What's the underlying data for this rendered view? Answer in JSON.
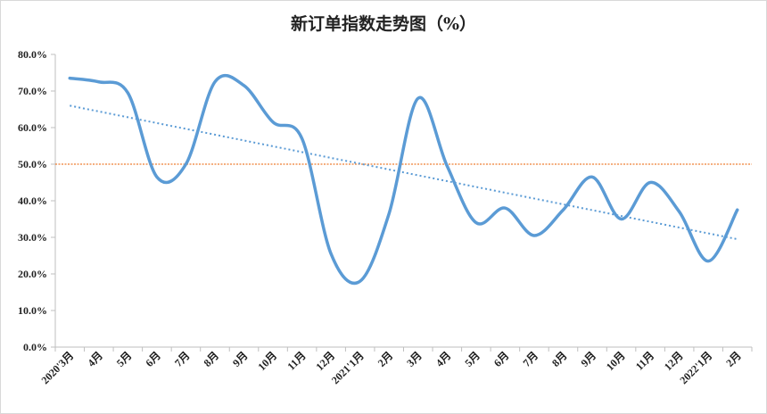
{
  "chart_data": {
    "type": "line",
    "title": "新订单指数走势图（%）",
    "categories": [
      "2020年3月",
      "4月",
      "5月",
      "6月",
      "7月",
      "8月",
      "9月",
      "10月",
      "11月",
      "12月",
      "2021年1月",
      "2月",
      "3月",
      "4月",
      "5月",
      "6月",
      "7月",
      "8月",
      "9月",
      "10月",
      "11月",
      "12月",
      "2022年1月",
      "2月"
    ],
    "tick_labels": [
      "2020'3月",
      "4月",
      "5月",
      "6月",
      "7月",
      "8月",
      "9月",
      "10月",
      "11月",
      "12月",
      "2021'1月",
      "2月",
      "3月",
      "4月",
      "5月",
      "6月",
      "7月",
      "8月",
      "9月",
      "10月",
      "11月",
      "12月",
      "2022'1月",
      "2月"
    ],
    "series": [
      {
        "values": [
          73.5,
          72.5,
          69.5,
          46.5,
          50.0,
          72.5,
          71.5,
          61.5,
          57.0,
          25.5,
          18.0,
          36.5,
          68.0,
          49.5,
          34.0,
          38.0,
          30.5,
          37.5,
          46.5,
          35.0,
          45.0,
          37.0,
          23.5,
          37.5
        ],
        "color": "#5b9bd5"
      }
    ],
    "trendline": {
      "start": 66.0,
      "end": 29.5,
      "color": "#5b9bd5",
      "style": "dotted"
    },
    "reference_line": {
      "value": 50.0,
      "color": "#ed7d31"
    },
    "y_ticks": [
      "0.0%",
      "10.0%",
      "20.0%",
      "30.0%",
      "40.0%",
      "50.0%",
      "60.0%",
      "70.0%",
      "80.0%"
    ],
    "ylim": [
      0,
      80
    ],
    "xlabel": "",
    "ylabel": "",
    "grid": false,
    "legend": "none"
  }
}
